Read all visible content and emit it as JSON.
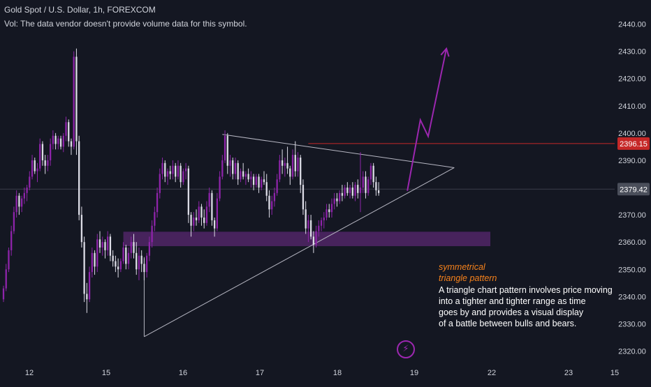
{
  "header": {
    "title": "Gold Spot / U.S. Dollar, 1h, FOREXCOM",
    "vol": "Vol: The data vendor doesn't provide volume data for this symbol."
  },
  "colors": {
    "background": "#141722",
    "up": "#8e24aa",
    "down": "#dcdce6",
    "resistance_line": "#c62828",
    "support_zone": "#4a2460",
    "triangle_lines": "#b8b8c4",
    "arrow": "#9c27b0",
    "annotation_title": "#f7821b"
  },
  "annotation": {
    "title_line1": "symmetrical",
    "title_line2": "triangle pattern",
    "body_line1": "A triangle chart pattern involves price moving",
    "body_line2": "into a tighter and tighter range as time",
    "body_line3": "goes by and provides a visual display",
    "body_line4": "of a battle between bulls and bears."
  },
  "icons": {
    "bolt": "lightning-bolt-icon"
  },
  "chart_data": {
    "type": "candlestick",
    "title": "Gold Spot / U.S. Dollar, 1h, FOREXCOM",
    "x_tick_labels": [
      "12",
      "15",
      "16",
      "17",
      "18",
      "19",
      "22",
      "23",
      "15"
    ],
    "y_ticks": [
      2320,
      2330,
      2340,
      2350,
      2360,
      2370,
      2380,
      2390,
      2400,
      2410,
      2420,
      2430,
      2440
    ],
    "y_tick_labels": [
      "2320.00",
      "2330.00",
      "2340.00",
      "2350.00",
      "2360.00",
      "2370.00",
      "2380.00",
      "2390.00",
      "2400.00",
      "2410.00",
      "2420.00",
      "2430.00",
      "2440.00"
    ],
    "ylim": [
      2318,
      2444
    ],
    "price_labels": [
      {
        "text": "2396.15",
        "value": 2396.15,
        "color": "#c62828"
      },
      {
        "text": "2379.42",
        "value": 2379.42,
        "color": "#4a4e5a"
      }
    ],
    "levels": {
      "resistance": 2396.15,
      "current": 2379.42
    },
    "support_zone": [
      2358.5,
      2363.8
    ],
    "triangle": {
      "upper_start": {
        "bar": 84,
        "price": 2399.5
      },
      "apex": {
        "bar": 173,
        "price": 2387.3
      },
      "lower_start": {
        "bar": 54,
        "price": 2325.3
      },
      "left_vertical": {
        "bar": 54,
        "from": 2354.5,
        "to": 2325.3
      }
    },
    "projection": [
      {
        "bar": 155,
        "price": 2378.8
      },
      {
        "bar": 160,
        "price": 2404.8
      },
      {
        "bar": 163,
        "price": 2398.8
      },
      {
        "bar": 170,
        "price": 2431.0
      }
    ],
    "candles": [
      {
        "o": 2339,
        "h": 2344,
        "l": 2338,
        "c": 2343
      },
      {
        "o": 2343,
        "h": 2352,
        "l": 2342,
        "c": 2350
      },
      {
        "o": 2350,
        "h": 2358,
        "l": 2349,
        "c": 2357
      },
      {
        "o": 2357,
        "h": 2366,
        "l": 2355,
        "c": 2364
      },
      {
        "o": 2364,
        "h": 2373,
        "l": 2363,
        "c": 2371
      },
      {
        "o": 2371,
        "h": 2379,
        "l": 2369,
        "c": 2377
      },
      {
        "o": 2377,
        "h": 2378,
        "l": 2370,
        "c": 2373
      },
      {
        "o": 2373,
        "h": 2377,
        "l": 2371,
        "c": 2376
      },
      {
        "o": 2376,
        "h": 2380,
        "l": 2374,
        "c": 2378
      },
      {
        "o": 2378,
        "h": 2381,
        "l": 2375,
        "c": 2380
      },
      {
        "o": 2380,
        "h": 2386,
        "l": 2379,
        "c": 2384
      },
      {
        "o": 2384,
        "h": 2392,
        "l": 2383,
        "c": 2390
      },
      {
        "o": 2390,
        "h": 2391,
        "l": 2385,
        "c": 2386
      },
      {
        "o": 2386,
        "h": 2389,
        "l": 2382,
        "c": 2387
      },
      {
        "o": 2387,
        "h": 2398,
        "l": 2386,
        "c": 2396
      },
      {
        "o": 2396,
        "h": 2397,
        "l": 2388,
        "c": 2390
      },
      {
        "o": 2390,
        "h": 2392,
        "l": 2385,
        "c": 2388
      },
      {
        "o": 2388,
        "h": 2392,
        "l": 2386,
        "c": 2390
      },
      {
        "o": 2390,
        "h": 2398,
        "l": 2388,
        "c": 2396
      },
      {
        "o": 2396,
        "h": 2401,
        "l": 2394,
        "c": 2399
      },
      {
        "o": 2399,
        "h": 2400,
        "l": 2394,
        "c": 2396
      },
      {
        "o": 2396,
        "h": 2399,
        "l": 2394,
        "c": 2398
      },
      {
        "o": 2398,
        "h": 2399,
        "l": 2394,
        "c": 2395
      },
      {
        "o": 2395,
        "h": 2400,
        "l": 2393,
        "c": 2399
      },
      {
        "o": 2399,
        "h": 2406,
        "l": 2397,
        "c": 2404
      },
      {
        "o": 2404,
        "h": 2405,
        "l": 2395,
        "c": 2397
      },
      {
        "o": 2397,
        "h": 2398,
        "l": 2392,
        "c": 2395
      },
      {
        "o": 2395,
        "h": 2430,
        "l": 2394,
        "c": 2428
      },
      {
        "o": 2428,
        "h": 2431,
        "l": 2392,
        "c": 2397
      },
      {
        "o": 2397,
        "h": 2399,
        "l": 2368,
        "c": 2370
      },
      {
        "o": 2370,
        "h": 2373,
        "l": 2358,
        "c": 2360
      },
      {
        "o": 2360,
        "h": 2362,
        "l": 2338,
        "c": 2341
      },
      {
        "o": 2341,
        "h": 2345,
        "l": 2334,
        "c": 2339
      },
      {
        "o": 2339,
        "h": 2351,
        "l": 2338,
        "c": 2349
      },
      {
        "o": 2349,
        "h": 2358,
        "l": 2347,
        "c": 2356
      },
      {
        "o": 2356,
        "h": 2357,
        "l": 2348,
        "c": 2351
      },
      {
        "o": 2351,
        "h": 2363,
        "l": 2349,
        "c": 2361
      },
      {
        "o": 2361,
        "h": 2364,
        "l": 2356,
        "c": 2358
      },
      {
        "o": 2358,
        "h": 2362,
        "l": 2355,
        "c": 2360
      },
      {
        "o": 2360,
        "h": 2361,
        "l": 2354,
        "c": 2357
      },
      {
        "o": 2357,
        "h": 2364,
        "l": 2355,
        "c": 2362
      },
      {
        "o": 2362,
        "h": 2363,
        "l": 2353,
        "c": 2355
      },
      {
        "o": 2355,
        "h": 2357,
        "l": 2351,
        "c": 2353
      },
      {
        "o": 2353,
        "h": 2355,
        "l": 2349,
        "c": 2351
      },
      {
        "o": 2351,
        "h": 2354,
        "l": 2347,
        "c": 2350
      },
      {
        "o": 2350,
        "h": 2354,
        "l": 2349,
        "c": 2353
      },
      {
        "o": 2353,
        "h": 2360,
        "l": 2352,
        "c": 2358
      },
      {
        "o": 2358,
        "h": 2359,
        "l": 2350,
        "c": 2352
      },
      {
        "o": 2352,
        "h": 2358,
        "l": 2350,
        "c": 2356
      },
      {
        "o": 2356,
        "h": 2362,
        "l": 2354,
        "c": 2360
      },
      {
        "o": 2360,
        "h": 2363,
        "l": 2354,
        "c": 2356
      },
      {
        "o": 2356,
        "h": 2360,
        "l": 2348,
        "c": 2350
      },
      {
        "o": 2350,
        "h": 2358,
        "l": 2346,
        "c": 2355
      },
      {
        "o": 2355,
        "h": 2357,
        "l": 2349,
        "c": 2352
      },
      {
        "o": 2352,
        "h": 2354,
        "l": 2346,
        "c": 2349
      },
      {
        "o": 2349,
        "h": 2356,
        "l": 2347,
        "c": 2355
      },
      {
        "o": 2355,
        "h": 2362,
        "l": 2353,
        "c": 2360
      },
      {
        "o": 2360,
        "h": 2368,
        "l": 2358,
        "c": 2366
      },
      {
        "o": 2366,
        "h": 2373,
        "l": 2364,
        "c": 2371
      },
      {
        "o": 2371,
        "h": 2380,
        "l": 2369,
        "c": 2378
      },
      {
        "o": 2378,
        "h": 2387,
        "l": 2376,
        "c": 2385
      },
      {
        "o": 2385,
        "h": 2391,
        "l": 2383,
        "c": 2389
      },
      {
        "o": 2389,
        "h": 2390,
        "l": 2382,
        "c": 2384
      },
      {
        "o": 2384,
        "h": 2387,
        "l": 2381,
        "c": 2386
      },
      {
        "o": 2386,
        "h": 2388,
        "l": 2383,
        "c": 2385
      },
      {
        "o": 2385,
        "h": 2390,
        "l": 2383,
        "c": 2388
      },
      {
        "o": 2388,
        "h": 2389,
        "l": 2382,
        "c": 2384
      },
      {
        "o": 2384,
        "h": 2390,
        "l": 2383,
        "c": 2388
      },
      {
        "o": 2388,
        "h": 2389,
        "l": 2380,
        "c": 2382
      },
      {
        "o": 2382,
        "h": 2387,
        "l": 2381,
        "c": 2386
      },
      {
        "o": 2386,
        "h": 2389,
        "l": 2383,
        "c": 2387
      },
      {
        "o": 2387,
        "h": 2388,
        "l": 2367,
        "c": 2370
      },
      {
        "o": 2370,
        "h": 2371,
        "l": 2362,
        "c": 2366
      },
      {
        "o": 2366,
        "h": 2371,
        "l": 2364,
        "c": 2369
      },
      {
        "o": 2369,
        "h": 2372,
        "l": 2366,
        "c": 2368
      },
      {
        "o": 2368,
        "h": 2375,
        "l": 2367,
        "c": 2373
      },
      {
        "o": 2373,
        "h": 2374,
        "l": 2366,
        "c": 2369
      },
      {
        "o": 2369,
        "h": 2372,
        "l": 2365,
        "c": 2367
      },
      {
        "o": 2367,
        "h": 2375,
        "l": 2366,
        "c": 2373
      },
      {
        "o": 2373,
        "h": 2380,
        "l": 2371,
        "c": 2378
      },
      {
        "o": 2378,
        "h": 2379,
        "l": 2366,
        "c": 2368
      },
      {
        "o": 2368,
        "h": 2369,
        "l": 2362,
        "c": 2365
      },
      {
        "o": 2365,
        "h": 2378,
        "l": 2364,
        "c": 2376
      },
      {
        "o": 2376,
        "h": 2386,
        "l": 2375,
        "c": 2384
      },
      {
        "o": 2384,
        "h": 2392,
        "l": 2383,
        "c": 2390
      },
      {
        "o": 2390,
        "h": 2401,
        "l": 2389,
        "c": 2399
      },
      {
        "o": 2399,
        "h": 2400,
        "l": 2385,
        "c": 2388
      },
      {
        "o": 2388,
        "h": 2392,
        "l": 2384,
        "c": 2390
      },
      {
        "o": 2390,
        "h": 2391,
        "l": 2383,
        "c": 2385
      },
      {
        "o": 2385,
        "h": 2391,
        "l": 2383,
        "c": 2389
      },
      {
        "o": 2389,
        "h": 2390,
        "l": 2381,
        "c": 2383
      },
      {
        "o": 2383,
        "h": 2387,
        "l": 2382,
        "c": 2386
      },
      {
        "o": 2386,
        "h": 2389,
        "l": 2383,
        "c": 2384
      },
      {
        "o": 2384,
        "h": 2386,
        "l": 2381,
        "c": 2385
      },
      {
        "o": 2385,
        "h": 2387,
        "l": 2382,
        "c": 2383
      },
      {
        "o": 2383,
        "h": 2386,
        "l": 2380,
        "c": 2384
      },
      {
        "o": 2384,
        "h": 2385,
        "l": 2379,
        "c": 2381
      },
      {
        "o": 2381,
        "h": 2385,
        "l": 2380,
        "c": 2384
      },
      {
        "o": 2384,
        "h": 2385,
        "l": 2378,
        "c": 2380
      },
      {
        "o": 2380,
        "h": 2384,
        "l": 2379,
        "c": 2383
      },
      {
        "o": 2383,
        "h": 2386,
        "l": 2381,
        "c": 2382
      },
      {
        "o": 2382,
        "h": 2385,
        "l": 2375,
        "c": 2377
      },
      {
        "o": 2377,
        "h": 2379,
        "l": 2369,
        "c": 2372
      },
      {
        "o": 2372,
        "h": 2377,
        "l": 2370,
        "c": 2375
      },
      {
        "o": 2375,
        "h": 2380,
        "l": 2373,
        "c": 2378
      },
      {
        "o": 2378,
        "h": 2385,
        "l": 2377,
        "c": 2383
      },
      {
        "o": 2383,
        "h": 2392,
        "l": 2382,
        "c": 2390
      },
      {
        "o": 2390,
        "h": 2394,
        "l": 2385,
        "c": 2388
      },
      {
        "o": 2388,
        "h": 2391,
        "l": 2384,
        "c": 2389
      },
      {
        "o": 2389,
        "h": 2395,
        "l": 2385,
        "c": 2387
      },
      {
        "o": 2387,
        "h": 2388,
        "l": 2381,
        "c": 2384
      },
      {
        "o": 2384,
        "h": 2394,
        "l": 2383,
        "c": 2392
      },
      {
        "o": 2392,
        "h": 2397,
        "l": 2384,
        "c": 2386
      },
      {
        "o": 2386,
        "h": 2393,
        "l": 2384,
        "c": 2391
      },
      {
        "o": 2391,
        "h": 2392,
        "l": 2378,
        "c": 2381
      },
      {
        "o": 2381,
        "h": 2383,
        "l": 2370,
        "c": 2372
      },
      {
        "o": 2372,
        "h": 2375,
        "l": 2363,
        "c": 2365
      },
      {
        "o": 2365,
        "h": 2370,
        "l": 2360,
        "c": 2368
      },
      {
        "o": 2368,
        "h": 2370,
        "l": 2361,
        "c": 2362
      },
      {
        "o": 2362,
        "h": 2364,
        "l": 2356,
        "c": 2359
      },
      {
        "o": 2359,
        "h": 2366,
        "l": 2358,
        "c": 2364
      },
      {
        "o": 2364,
        "h": 2368,
        "l": 2362,
        "c": 2366
      },
      {
        "o": 2366,
        "h": 2369,
        "l": 2364,
        "c": 2368
      },
      {
        "o": 2368,
        "h": 2371,
        "l": 2365,
        "c": 2369
      },
      {
        "o": 2369,
        "h": 2374,
        "l": 2368,
        "c": 2372
      },
      {
        "o": 2372,
        "h": 2374,
        "l": 2369,
        "c": 2371
      },
      {
        "o": 2371,
        "h": 2376,
        "l": 2369,
        "c": 2374
      },
      {
        "o": 2374,
        "h": 2378,
        "l": 2372,
        "c": 2376
      },
      {
        "o": 2376,
        "h": 2378,
        "l": 2373,
        "c": 2375
      },
      {
        "o": 2375,
        "h": 2379,
        "l": 2374,
        "c": 2378
      },
      {
        "o": 2378,
        "h": 2381,
        "l": 2375,
        "c": 2377
      },
      {
        "o": 2377,
        "h": 2381,
        "l": 2376,
        "c": 2380
      },
      {
        "o": 2380,
        "h": 2382,
        "l": 2377,
        "c": 2378
      },
      {
        "o": 2378,
        "h": 2381,
        "l": 2376,
        "c": 2380
      },
      {
        "o": 2380,
        "h": 2382,
        "l": 2376,
        "c": 2377
      },
      {
        "o": 2377,
        "h": 2382,
        "l": 2375,
        "c": 2381
      },
      {
        "o": 2381,
        "h": 2383,
        "l": 2376,
        "c": 2378
      },
      {
        "o": 2378,
        "h": 2393,
        "l": 2371,
        "c": 2380
      },
      {
        "o": 2380,
        "h": 2386,
        "l": 2378,
        "c": 2384
      },
      {
        "o": 2384,
        "h": 2386,
        "l": 2376,
        "c": 2378
      },
      {
        "o": 2378,
        "h": 2384,
        "l": 2377,
        "c": 2383
      },
      {
        "o": 2383,
        "h": 2389,
        "l": 2381,
        "c": 2388
      },
      {
        "o": 2388,
        "h": 2389,
        "l": 2380,
        "c": 2382
      },
      {
        "o": 2382,
        "h": 2384,
        "l": 2377,
        "c": 2379
      },
      {
        "o": 2379,
        "h": 2382,
        "l": 2377,
        "c": 2378
      }
    ]
  }
}
